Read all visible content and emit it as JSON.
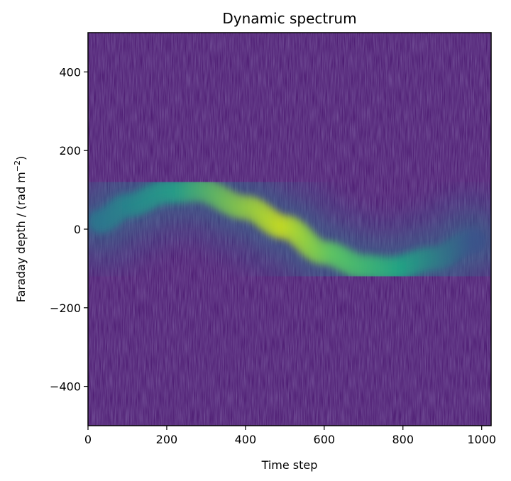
{
  "chart_data": {
    "type": "heatmap",
    "title": "Dynamic spectrum",
    "xlabel": "Time step",
    "ylabel_main": "Faraday depth / (rad m",
    "ylabel_exp": "−2",
    "ylabel_close": ")",
    "xlim": [
      0,
      1024
    ],
    "ylim": [
      -500,
      500
    ],
    "xticks": [
      0,
      200,
      400,
      600,
      800,
      1000
    ],
    "yticks": [
      -400,
      -200,
      0,
      200,
      400
    ],
    "xtick_labels": [
      "0",
      "200",
      "400",
      "600",
      "800",
      "1000"
    ],
    "ytick_labels": [
      "−400",
      "−200",
      "0",
      "200",
      "400"
    ],
    "colormap": "viridis",
    "background_color": "#45106a",
    "grid": false,
    "signal": {
      "description_of_ridge": "sinusoidal Faraday-depth track",
      "time_start": 30,
      "time_end": 980,
      "ridge_points": [
        {
          "t": 30,
          "phi": 20
        },
        {
          "t": 100,
          "phi": 60
        },
        {
          "t": 200,
          "phi": 95
        },
        {
          "t": 280,
          "phi": 100
        },
        {
          "t": 400,
          "phi": 55
        },
        {
          "t": 500,
          "phi": 5
        },
        {
          "t": 600,
          "phi": -60
        },
        {
          "t": 700,
          "phi": -95
        },
        {
          "t": 770,
          "phi": -100
        },
        {
          "t": 880,
          "phi": -75
        },
        {
          "t": 980,
          "phi": -30
        }
      ],
      "peak_time": 490,
      "peak_intensity": 1.0
    }
  }
}
